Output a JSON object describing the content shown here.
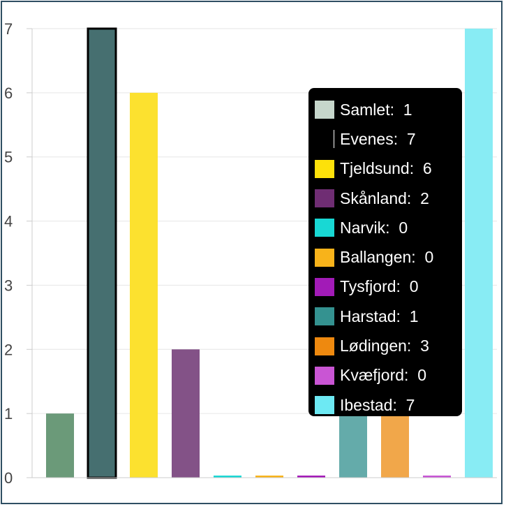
{
  "chart_data": {
    "type": "bar",
    "categories": [
      "Samlet",
      "Evenes",
      "Tjeldsund",
      "Skånland",
      "Narvik",
      "Ballangen",
      "Tysfjord",
      "Harstad",
      "Lødingen",
      "Kvæfjord",
      "Ibestad"
    ],
    "values": [
      1,
      7,
      6,
      2,
      0,
      0,
      0,
      1,
      3,
      0,
      7
    ],
    "colors": [
      "#6b9a79",
      "#466f70",
      "#fce12f",
      "#835287",
      "#1ad7d4",
      "#f8b31a",
      "#a319b8",
      "#64abaa",
      "#f1a74a",
      "#c755d4",
      "#88ecf4"
    ],
    "legend_colors": [
      "#c6d6cb",
      "#000000",
      "#fde10a",
      "#6f2d73",
      "#18d8d4",
      "#f8b31a",
      "#a21bb7",
      "#349290",
      "#ee890f",
      "#c955d4",
      "#6de9f3"
    ],
    "y_ticks": [
      "0",
      "1",
      "2",
      "3",
      "4",
      "5",
      "6",
      "7"
    ],
    "ylim": [
      0,
      7
    ],
    "grid": true,
    "legend_placement": "tooltip over plot"
  }
}
